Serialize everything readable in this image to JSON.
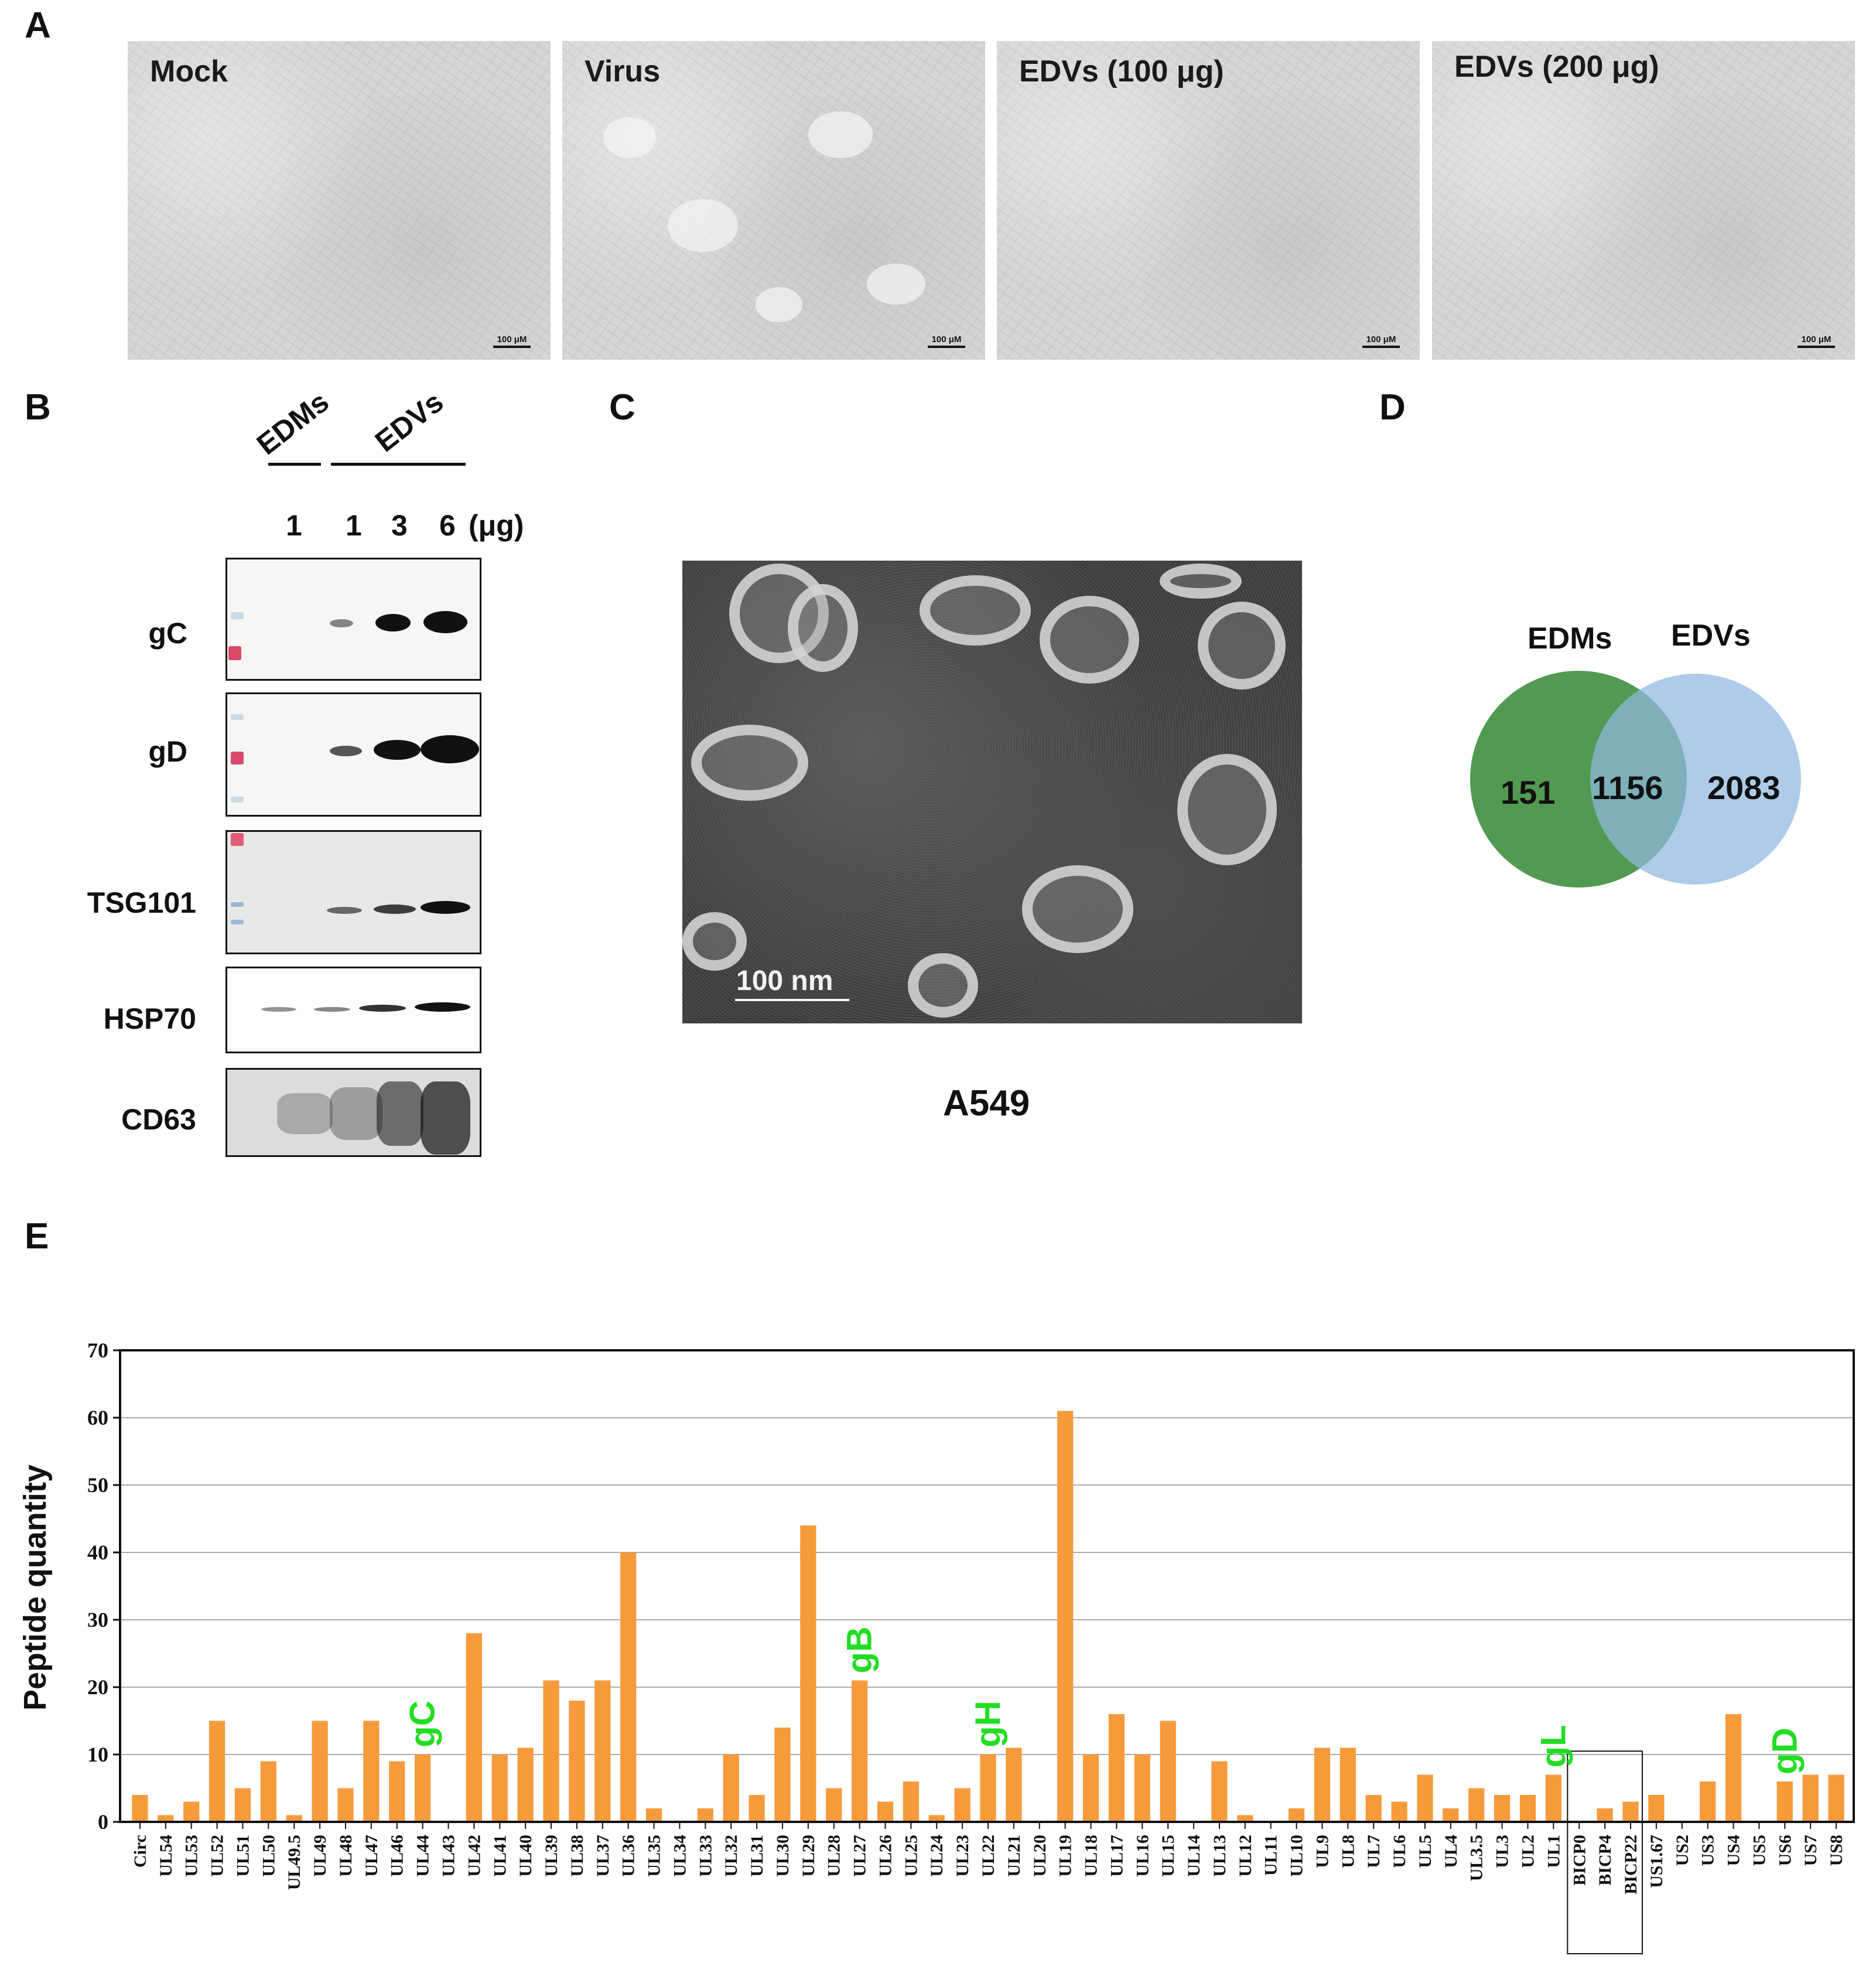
{
  "panel_letters": {
    "a": "A",
    "b": "B",
    "c": "C",
    "d": "D",
    "e": "E"
  },
  "panel_a": {
    "images": [
      {
        "label": "Mock",
        "scale": "100 μM"
      },
      {
        "label": "Virus",
        "scale": "100 μM"
      },
      {
        "label": "EDVs (100 μg)",
        "scale": "100 μM"
      },
      {
        "label": "EDVs (200 μg)",
        "scale": "100 μM"
      }
    ]
  },
  "panel_b": {
    "group_edms": "EDMs",
    "group_edvs": "EDVs",
    "lanes": [
      "1",
      "1",
      "3",
      "6"
    ],
    "unit": "(μg)",
    "blots": [
      "gC",
      "gD",
      "TSG101",
      "HSP70",
      "CD63"
    ]
  },
  "panel_c": {
    "scale": "100 nm",
    "caption": "A549"
  },
  "panel_d": {
    "left_label": "EDMs",
    "right_label": "EDVs",
    "left_only": "151",
    "overlap": "1156",
    "right_only": "2083",
    "colors": {
      "left": "#3f8f3f",
      "right": "#8fb8e0"
    }
  },
  "chart_data": {
    "type": "bar",
    "ylabel": "Peptide quantity",
    "ylim": [
      0,
      70
    ],
    "yticks": [
      0,
      10,
      20,
      30,
      40,
      50,
      60,
      70
    ],
    "bar_color": "#f79a3b",
    "highlight_color": "#22dd22",
    "categories": [
      "Circ",
      "UL54",
      "UL53",
      "UL52",
      "UL51",
      "UL50",
      "UL49.5",
      "UL49",
      "UL48",
      "UL47",
      "UL46",
      "UL44",
      "UL43",
      "UL42",
      "UL41",
      "UL40",
      "UL39",
      "UL38",
      "UL37",
      "UL36",
      "UL35",
      "UL34",
      "UL33",
      "UL32",
      "UL31",
      "UL30",
      "UL29",
      "UL28",
      "UL27",
      "UL26",
      "UL25",
      "UL24",
      "UL23",
      "UL22",
      "UL21",
      "UL20",
      "UL19",
      "UL18",
      "UL17",
      "UL16",
      "UL15",
      "UL14",
      "UL13",
      "UL12",
      "UL11",
      "UL10",
      "UL9",
      "UL8",
      "UL7",
      "UL6",
      "UL5",
      "UL4",
      "UL3.5",
      "UL3",
      "UL2",
      "UL1",
      "BICP0",
      "BICP4",
      "BICP22",
      "US1.67",
      "US2",
      "US3",
      "US4",
      "US5",
      "US6",
      "US7",
      "US8"
    ],
    "values": [
      4,
      1,
      3,
      15,
      5,
      9,
      1,
      15,
      5,
      15,
      9,
      10,
      0,
      28,
      10,
      11,
      21,
      18,
      21,
      40,
      2,
      0,
      2,
      10,
      4,
      14,
      44,
      5,
      21,
      3,
      6,
      1,
      5,
      10,
      11,
      0,
      61,
      10,
      16,
      10,
      15,
      0,
      9,
      1,
      0,
      2,
      11,
      11,
      4,
      3,
      7,
      2,
      5,
      4,
      4,
      7,
      0,
      2,
      3,
      4,
      0,
      6,
      16,
      0,
      6,
      7,
      7
    ],
    "annotations": [
      {
        "text": "gC",
        "category": "UL44"
      },
      {
        "text": "gB",
        "category": "UL27"
      },
      {
        "text": "gH",
        "category": "UL22"
      },
      {
        "text": "gL",
        "category": "UL1"
      },
      {
        "text": "gD",
        "category": "US6"
      }
    ],
    "boxed_categories": [
      "BICP0",
      "BICP4",
      "BICP22"
    ],
    "grid": true
  }
}
